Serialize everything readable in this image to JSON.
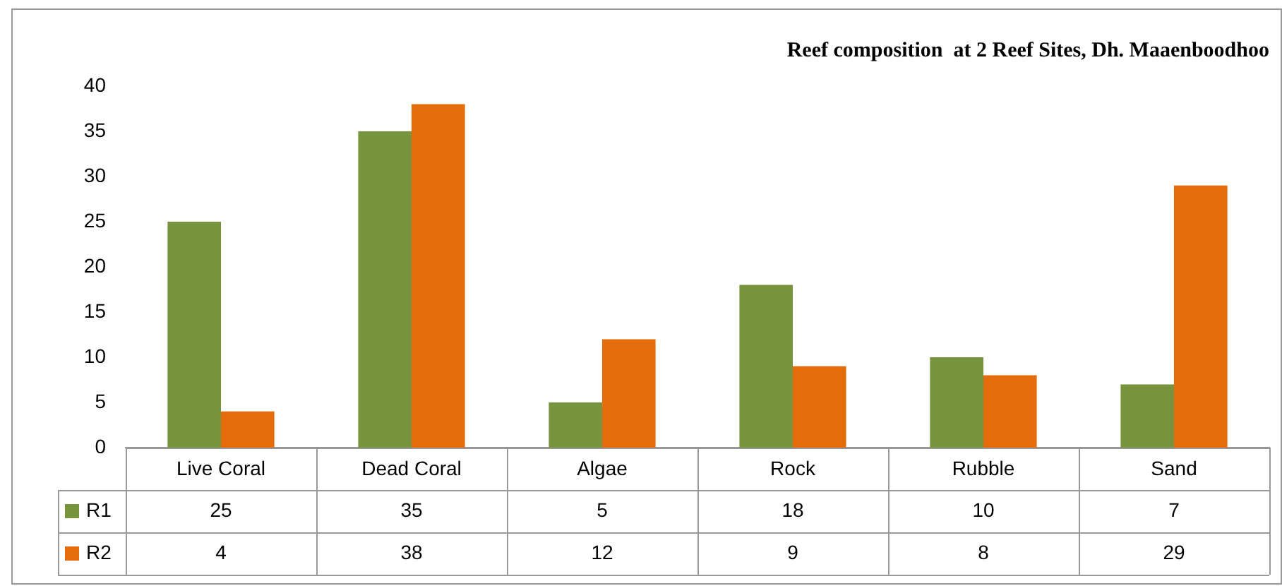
{
  "chart_data": {
    "type": "bar",
    "title": "Reef composition  at 2 Reef Sites, Dh. Maaenboodhoo",
    "categories": [
      "Live Coral",
      "Dead Coral",
      "Algae",
      "Rock",
      "Rubble",
      "Sand"
    ],
    "series": [
      {
        "name": "R1",
        "color": "#77933c",
        "values": [
          25,
          35,
          5,
          18,
          10,
          7
        ]
      },
      {
        "name": "R2",
        "color": "#e46c0a",
        "values": [
          4,
          38,
          12,
          9,
          8,
          29
        ]
      }
    ],
    "ylim": [
      0,
      40
    ],
    "yticks": [
      0,
      5,
      10,
      15,
      20,
      25,
      30,
      35,
      40
    ],
    "grid": false,
    "legend": "bottom",
    "data_labels": true
  }
}
